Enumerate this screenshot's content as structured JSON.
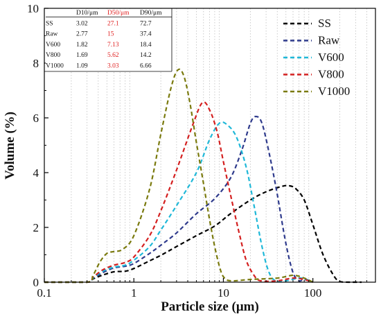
{
  "chart_data": {
    "type": "line",
    "xlabel": "Particle size (μm)",
    "ylabel": "Volume (%)",
    "xscale": "log",
    "xlim": [
      0.1,
      500
    ],
    "ylim": [
      0,
      10
    ],
    "xticks": [
      {
        "value": 0.1,
        "label": "0.1"
      },
      {
        "value": 1,
        "label": "1"
      },
      {
        "value": 10,
        "label": "10"
      },
      {
        "value": 100,
        "label": "100"
      }
    ],
    "yticks": [
      {
        "value": 0,
        "label": "0"
      },
      {
        "value": 2,
        "label": "2"
      },
      {
        "value": 4,
        "label": "4"
      },
      {
        "value": 6,
        "label": "6"
      },
      {
        "value": 8,
        "label": "8"
      },
      {
        "value": 10,
        "label": "10"
      }
    ],
    "legend_position": "top-right",
    "series": [
      {
        "name": "SS",
        "color": "#000000",
        "points": [
          [
            0.1,
            0
          ],
          [
            0.3,
            0
          ],
          [
            0.35,
            0.12
          ],
          [
            0.45,
            0.26
          ],
          [
            0.6,
            0.38
          ],
          [
            0.8,
            0.4
          ],
          [
            1,
            0.5
          ],
          [
            1.5,
            0.78
          ],
          [
            2,
            0.98
          ],
          [
            3,
            1.3
          ],
          [
            5,
            1.7
          ],
          [
            8,
            2.05
          ],
          [
            12,
            2.5
          ],
          [
            20,
            3.0
          ],
          [
            30,
            3.3
          ],
          [
            45,
            3.5
          ],
          [
            55,
            3.52
          ],
          [
            65,
            3.4
          ],
          [
            80,
            3.0
          ],
          [
            100,
            2.1
          ],
          [
            130,
            1.0
          ],
          [
            170,
            0.25
          ],
          [
            200,
            0.02
          ],
          [
            250,
            0
          ],
          [
            350,
            0
          ]
        ]
      },
      {
        "name": "Raw",
        "color": "#2e3a8c",
        "points": [
          [
            0.1,
            0
          ],
          [
            0.3,
            0
          ],
          [
            0.35,
            0.15
          ],
          [
            0.45,
            0.35
          ],
          [
            0.6,
            0.52
          ],
          [
            0.8,
            0.58
          ],
          [
            1,
            0.68
          ],
          [
            1.5,
            1.05
          ],
          [
            2,
            1.35
          ],
          [
            3,
            1.8
          ],
          [
            5,
            2.5
          ],
          [
            8,
            3.05
          ],
          [
            12,
            3.8
          ],
          [
            16,
            4.8
          ],
          [
            20,
            5.8
          ],
          [
            23,
            6.05
          ],
          [
            27,
            5.8
          ],
          [
            33,
            4.6
          ],
          [
            40,
            3.2
          ],
          [
            50,
            1.4
          ],
          [
            60,
            0.35
          ],
          [
            70,
            0.05
          ],
          [
            80,
            0.1
          ],
          [
            100,
            0
          ]
        ]
      },
      {
        "name": "V600",
        "color": "#1fb8d8",
        "points": [
          [
            0.1,
            0
          ],
          [
            0.3,
            0
          ],
          [
            0.35,
            0.15
          ],
          [
            0.45,
            0.4
          ],
          [
            0.6,
            0.55
          ],
          [
            0.8,
            0.62
          ],
          [
            1,
            0.8
          ],
          [
            1.5,
            1.3
          ],
          [
            2,
            1.9
          ],
          [
            3,
            2.8
          ],
          [
            5,
            4.0
          ],
          [
            7,
            5.2
          ],
          [
            9,
            5.8
          ],
          [
            11,
            5.75
          ],
          [
            14,
            5.3
          ],
          [
            18,
            4.2
          ],
          [
            22,
            2.8
          ],
          [
            27,
            1.3
          ],
          [
            32,
            0.4
          ],
          [
            38,
            0.05
          ],
          [
            50,
            0.05
          ],
          [
            70,
            0.15
          ],
          [
            85,
            0.1
          ],
          [
            100,
            0
          ]
        ]
      },
      {
        "name": "V800",
        "color": "#d42020",
        "points": [
          [
            0.1,
            0
          ],
          [
            0.3,
            0
          ],
          [
            0.35,
            0.18
          ],
          [
            0.45,
            0.45
          ],
          [
            0.6,
            0.62
          ],
          [
            0.8,
            0.72
          ],
          [
            1,
            0.92
          ],
          [
            1.5,
            1.7
          ],
          [
            2,
            2.6
          ],
          [
            3,
            4.1
          ],
          [
            4.5,
            5.7
          ],
          [
            5.8,
            6.55
          ],
          [
            7,
            6.3
          ],
          [
            8.5,
            5.5
          ],
          [
            10,
            4.4
          ],
          [
            12,
            3.2
          ],
          [
            15,
            1.8
          ],
          [
            18,
            0.8
          ],
          [
            22,
            0.25
          ],
          [
            26,
            0.05
          ],
          [
            40,
            0.05
          ],
          [
            60,
            0.15
          ],
          [
            80,
            0.1
          ],
          [
            100,
            0
          ]
        ]
      },
      {
        "name": "V1000",
        "color": "#7a7a0e",
        "points": [
          [
            0.1,
            0
          ],
          [
            0.3,
            0
          ],
          [
            0.35,
            0.25
          ],
          [
            0.42,
            0.75
          ],
          [
            0.5,
            1.05
          ],
          [
            0.6,
            1.12
          ],
          [
            0.75,
            1.2
          ],
          [
            1,
            1.7
          ],
          [
            1.5,
            3.4
          ],
          [
            2,
            5.4
          ],
          [
            2.6,
            7.1
          ],
          [
            3.1,
            7.75
          ],
          [
            3.6,
            7.55
          ],
          [
            4.2,
            6.6
          ],
          [
            5,
            5.1
          ],
          [
            6,
            3.6
          ],
          [
            7,
            2.3
          ],
          [
            8,
            1.3
          ],
          [
            9,
            0.6
          ],
          [
            10,
            0.2
          ],
          [
            12,
            0.05
          ],
          [
            20,
            0.1
          ],
          [
            40,
            0.15
          ],
          [
            60,
            0.25
          ],
          [
            80,
            0.15
          ],
          [
            100,
            0
          ]
        ]
      }
    ],
    "table": {
      "headers": [
        "",
        "D10/μm",
        "D50/μm",
        "D90/μm"
      ],
      "rows": [
        [
          "SS",
          "3.02",
          "27.1",
          "72.7"
        ],
        [
          "Raw",
          "2.77",
          "15",
          "37.4"
        ],
        [
          "V600",
          "1.82",
          "7.13",
          "18.4"
        ],
        [
          "V800",
          "1.69",
          "5.62",
          "14.2"
        ],
        [
          "V1000",
          "1.09",
          "3.03",
          "6.66"
        ]
      ],
      "highlight_column_color": "#e02020"
    }
  }
}
